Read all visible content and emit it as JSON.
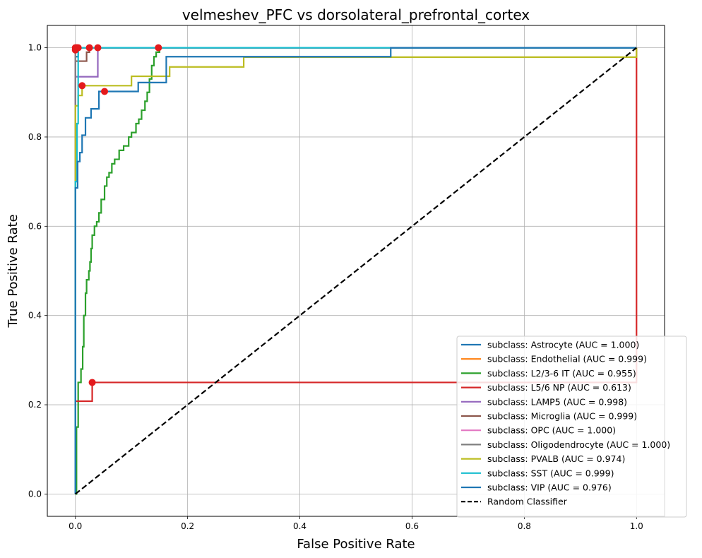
{
  "chart_data": {
    "type": "line",
    "title": "velmeshev_PFC vs dorsolateral_prefrontal_cortex",
    "xlabel": "False Positive Rate",
    "ylabel": "True Positive Rate",
    "xlim": [
      -0.05,
      1.05
    ],
    "ylim": [
      -0.05,
      1.05
    ],
    "xticks": [
      0.0,
      0.2,
      0.4,
      0.6,
      0.8,
      1.0
    ],
    "yticks": [
      0.0,
      0.2,
      0.4,
      0.6,
      0.8,
      1.0
    ],
    "xtick_labels": [
      "0.0",
      "0.2",
      "0.4",
      "0.6",
      "0.8",
      "1.0"
    ],
    "ytick_labels": [
      "0.0",
      "0.2",
      "0.4",
      "0.6",
      "0.8",
      "1.0"
    ],
    "grid": true,
    "legend_position": "lower-right",
    "series": [
      {
        "name": "subclass: Astrocyte (AUC = 1.000)",
        "color": "#1f77b4",
        "x": [
          0,
          0,
          0.005,
          0.005,
          1.0
        ],
        "y": [
          0,
          0.98,
          0.98,
          1.0,
          1.0
        ],
        "markers": [
          [
            0.003,
            1.0
          ]
        ]
      },
      {
        "name": "subclass: Endothelial (AUC = 0.999)",
        "color": "#ff7f0e",
        "x": [
          0,
          0,
          0.004,
          0.004,
          1.0
        ],
        "y": [
          0,
          0.99,
          0.99,
          1.0,
          1.0
        ],
        "markers": [
          [
            0.002,
            1.0
          ]
        ]
      },
      {
        "name": "subclass: L2/3-6 IT (AUC = 0.955)",
        "color": "#2ca02c",
        "x": [
          0,
          0.002,
          0.002,
          0.005,
          0.005,
          0.01,
          0.01,
          0.013,
          0.013,
          0.015,
          0.015,
          0.018,
          0.018,
          0.02,
          0.02,
          0.024,
          0.024,
          0.026,
          0.026,
          0.028,
          0.028,
          0.03,
          0.03,
          0.034,
          0.034,
          0.038,
          0.038,
          0.042,
          0.042,
          0.046,
          0.046,
          0.052,
          0.052,
          0.056,
          0.056,
          0.06,
          0.06,
          0.065,
          0.065,
          0.07,
          0.07,
          0.078,
          0.078,
          0.086,
          0.086,
          0.095,
          0.095,
          0.1,
          0.1,
          0.108,
          0.108,
          0.113,
          0.113,
          0.118,
          0.118,
          0.124,
          0.124,
          0.128,
          0.128,
          0.132,
          0.132,
          0.136,
          0.136,
          0.14,
          0.14,
          0.144,
          0.144,
          0.15,
          0.15,
          1.0
        ],
        "y": [
          0,
          0,
          0.15,
          0.15,
          0.25,
          0.25,
          0.28,
          0.28,
          0.33,
          0.33,
          0.4,
          0.4,
          0.45,
          0.45,
          0.48,
          0.48,
          0.5,
          0.5,
          0.52,
          0.52,
          0.55,
          0.55,
          0.58,
          0.58,
          0.6,
          0.6,
          0.61,
          0.61,
          0.63,
          0.63,
          0.66,
          0.66,
          0.69,
          0.69,
          0.71,
          0.71,
          0.72,
          0.72,
          0.74,
          0.74,
          0.75,
          0.75,
          0.77,
          0.77,
          0.78,
          0.78,
          0.8,
          0.8,
          0.81,
          0.81,
          0.83,
          0.83,
          0.84,
          0.84,
          0.86,
          0.86,
          0.88,
          0.88,
          0.9,
          0.9,
          0.93,
          0.93,
          0.96,
          0.96,
          0.98,
          0.98,
          0.99,
          0.99,
          1.0,
          1.0
        ],
        "markers": [
          [
            0.148,
            1.0
          ]
        ]
      },
      {
        "name": "subclass: L5/6 NP (AUC = 0.613)",
        "color": "#d62728",
        "x": [
          0,
          0,
          0.03,
          0.03,
          1.0,
          1.0
        ],
        "y": [
          0,
          0.208,
          0.208,
          0.25,
          0.25,
          1.0
        ],
        "markers": [
          [
            0.03,
            0.25
          ]
        ]
      },
      {
        "name": "subclass: LAMP5 (AUC = 0.998)",
        "color": "#9467bd",
        "x": [
          0,
          0,
          0.005,
          0.005,
          0.04,
          0.04,
          1.0
        ],
        "y": [
          0,
          0.935,
          0.935,
          0.935,
          0.935,
          1.0,
          1.0
        ],
        "markers": [
          [
            0.04,
            1.0
          ]
        ]
      },
      {
        "name": "subclass: Microglia (AUC = 0.999)",
        "color": "#8c564b",
        "x": [
          0,
          0,
          0.005,
          0.005,
          0.02,
          0.02,
          0.025,
          0.025,
          1.0
        ],
        "y": [
          0,
          0.97,
          0.97,
          0.97,
          0.97,
          0.99,
          0.99,
          1.0,
          1.0
        ],
        "markers": [
          [
            0.025,
            1.0
          ]
        ]
      },
      {
        "name": "subclass: OPC (AUC = 1.000)",
        "color": "#e377c2",
        "x": [
          0,
          0,
          1.0
        ],
        "y": [
          0,
          1.0,
          1.0
        ],
        "markers": [
          [
            0.0,
            1.0
          ]
        ]
      },
      {
        "name": "subclass: Oligodendrocyte (AUC = 1.000)",
        "color": "#7f7f7f",
        "x": [
          0,
          0,
          1.0
        ],
        "y": [
          0,
          1.0,
          1.0
        ],
        "markers": [
          [
            0.0,
            0.995
          ]
        ]
      },
      {
        "name": "subclass: PVALB (AUC = 0.974)",
        "color": "#bcbd22",
        "x": [
          0,
          0,
          0.005,
          0.005,
          0.012,
          0.012,
          0.1,
          0.1,
          0.168,
          0.168,
          0.3,
          0.3,
          1.0,
          1.0
        ],
        "y": [
          0,
          0.87,
          0.87,
          0.893,
          0.893,
          0.915,
          0.915,
          0.936,
          0.936,
          0.957,
          0.957,
          0.979,
          0.979,
          1.0
        ],
        "markers": [
          [
            0.012,
            0.915
          ]
        ]
      },
      {
        "name": "subclass: SST (AUC = 0.999)",
        "color": "#17becf",
        "x": [
          0,
          0,
          0.003,
          0.003,
          0.005,
          0.005,
          1.0
        ],
        "y": [
          0,
          0.7,
          0.7,
          0.83,
          0.83,
          1.0,
          1.0
        ],
        "markers": [
          [
            0.005,
            1.0
          ]
        ]
      },
      {
        "name": "subclass: VIP (AUC = 0.976)",
        "color": "#1f77b4",
        "x": [
          0,
          0,
          0.004,
          0.004,
          0.008,
          0.008,
          0.012,
          0.012,
          0.018,
          0.018,
          0.028,
          0.028,
          0.042,
          0.042,
          0.055,
          0.055,
          0.112,
          0.112,
          0.162,
          0.162,
          0.562,
          0.562,
          1.0
        ],
        "y": [
          0,
          0.686,
          0.686,
          0.745,
          0.745,
          0.765,
          0.765,
          0.804,
          0.804,
          0.843,
          0.843,
          0.863,
          0.863,
          0.902,
          0.902,
          0.902,
          0.902,
          0.922,
          0.922,
          0.98,
          0.98,
          1.0,
          1.0
        ],
        "markers": [
          [
            0.052,
            0.902
          ]
        ]
      },
      {
        "name": "Random Classifier",
        "color": "#000000",
        "dashed": true,
        "x": [
          0,
          1
        ],
        "y": [
          0,
          1
        ],
        "markers": []
      }
    ]
  }
}
